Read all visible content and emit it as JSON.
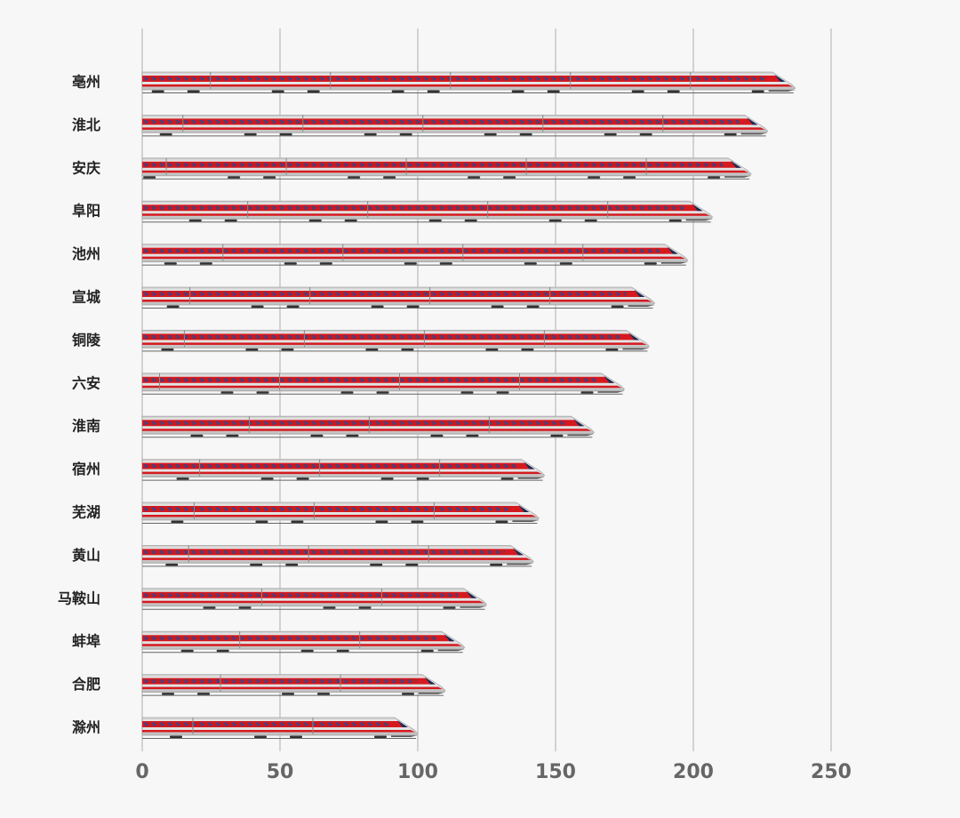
{
  "chart_data": {
    "type": "bar",
    "orientation": "horizontal",
    "title": "",
    "xlabel": "",
    "ylabel": "",
    "categories": [
      "亳州",
      "淮北",
      "安庆",
      "阜阳",
      "池州",
      "宣城",
      "铜陵",
      "六安",
      "淮南",
      "宿州",
      "芜湖",
      "黄山",
      "马鞍山",
      "蚌埠",
      "合肥",
      "滁州"
    ],
    "values": [
      237,
      227,
      221,
      207,
      198,
      186,
      184,
      175,
      164,
      146,
      144,
      142,
      125,
      117,
      110,
      100
    ],
    "xlim": [
      0,
      250
    ],
    "x_ticks": [
      0,
      50,
      100,
      150,
      200,
      250
    ],
    "grid": "vertical",
    "legend": "none",
    "colors": {
      "train_red": "#d51a1f",
      "train_body": "#e4e4e4",
      "window_blue": "#3a4f9a",
      "grid": "#c6c6c6",
      "background": "#f7f7f7"
    }
  }
}
